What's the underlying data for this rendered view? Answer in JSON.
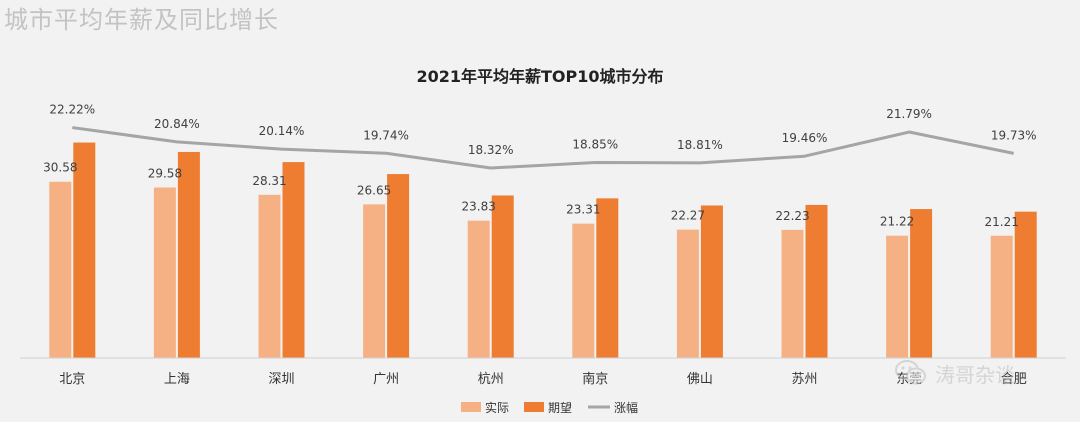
{
  "page_heading": "城市平均年薪及同比增长",
  "watermark": "涛哥杂谈",
  "colors": {
    "actual": "#f5b184",
    "expected": "#ee7d31",
    "growth": "#a5a5a5",
    "text": "#404040"
  },
  "chart_data": {
    "type": "bar",
    "title": "2021年平均年薪TOP10城市分布",
    "categories": [
      "北京",
      "上海",
      "深圳",
      "广州",
      "杭州",
      "南京",
      "佛山",
      "苏州",
      "东莞",
      "合肥"
    ],
    "series": [
      {
        "name": "实际",
        "type": "bar",
        "values": [
          30.58,
          29.58,
          28.31,
          26.65,
          23.83,
          23.31,
          22.27,
          22.23,
          21.22,
          21.21
        ]
      },
      {
        "name": "期望",
        "type": "bar",
        "values": [
          37.38,
          35.75,
          33.99,
          31.91,
          28.2,
          27.7,
          26.46,
          26.56,
          25.84,
          25.39
        ]
      },
      {
        "name": "涨幅",
        "type": "line",
        "values": [
          22.22,
          20.84,
          20.14,
          19.74,
          18.32,
          18.85,
          18.81,
          19.46,
          21.79,
          19.73
        ]
      }
    ],
    "actual_labels": [
      "30.58",
      "29.58",
      "28.31",
      "26.65",
      "23.83",
      "23.31",
      "22.27",
      "22.23",
      "21.22",
      "21.21"
    ],
    "growth_labels": [
      "22.22%",
      "20.84%",
      "20.14%",
      "19.74%",
      "18.32%",
      "18.85%",
      "18.81%",
      "19.46%",
      "21.79%",
      "19.73%"
    ],
    "bar_ylim": [
      0,
      40
    ],
    "line_ylim": [
      0,
      27
    ],
    "legend": [
      "实际",
      "期望",
      "涨幅"
    ],
    "legend_position": "bottom",
    "grid": false
  }
}
